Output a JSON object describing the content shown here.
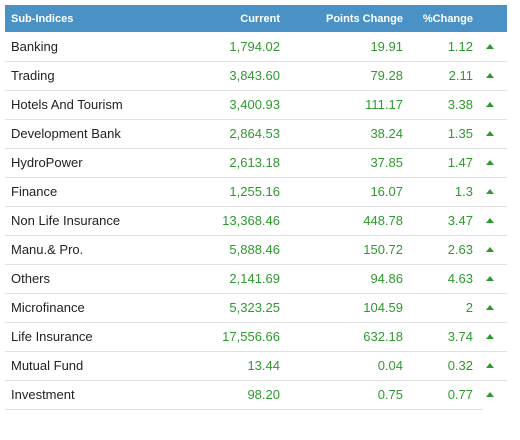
{
  "table": {
    "headers": {
      "name": "Sub-Indices",
      "current": "Current",
      "points_change": "Points Change",
      "pct_change": "%Change"
    },
    "rows": [
      {
        "name": "Banking",
        "current": "1,794.02",
        "points_change": "19.91",
        "pct_change": "1.12",
        "trend": "up"
      },
      {
        "name": "Trading",
        "current": "3,843.60",
        "points_change": "79.28",
        "pct_change": "2.11",
        "trend": "up"
      },
      {
        "name": "Hotels And Tourism",
        "current": "3,400.93",
        "points_change": "111.17",
        "pct_change": "3.38",
        "trend": "up"
      },
      {
        "name": "Development Bank",
        "current": "2,864.53",
        "points_change": "38.24",
        "pct_change": "1.35",
        "trend": "up"
      },
      {
        "name": "HydroPower",
        "current": "2,613.18",
        "points_change": "37.85",
        "pct_change": "1.47",
        "trend": "up"
      },
      {
        "name": "Finance",
        "current": "1,255.16",
        "points_change": "16.07",
        "pct_change": "1.3",
        "trend": "up"
      },
      {
        "name": "Non Life Insurance",
        "current": "13,368.46",
        "points_change": "448.78",
        "pct_change": "3.47",
        "trend": "up"
      },
      {
        "name": "Manu.& Pro.",
        "current": "5,888.46",
        "points_change": "150.72",
        "pct_change": "2.63",
        "trend": "up"
      },
      {
        "name": "Others",
        "current": "2,141.69",
        "points_change": "94.86",
        "pct_change": "4.63",
        "trend": "up"
      },
      {
        "name": "Microfinance",
        "current": "5,323.25",
        "points_change": "104.59",
        "pct_change": "2",
        "trend": "up"
      },
      {
        "name": "Life Insurance",
        "current": "17,556.66",
        "points_change": "632.18",
        "pct_change": "3.74",
        "trend": "up"
      },
      {
        "name": "Mutual Fund",
        "current": "13.44",
        "points_change": "0.04",
        "pct_change": "0.32",
        "trend": "up"
      },
      {
        "name": "Investment",
        "current": "98.20",
        "points_change": "0.75",
        "pct_change": "0.77",
        "trend": "up"
      }
    ]
  },
  "colors": {
    "header_bg": "#4a92c6",
    "positive": "#2e9a2e",
    "row_border": "#e1e1e1"
  },
  "icons": {
    "trend_up": "arrow-up-icon"
  }
}
